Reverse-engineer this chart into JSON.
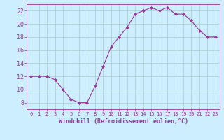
{
  "x": [
    0,
    1,
    2,
    3,
    4,
    5,
    6,
    7,
    8,
    9,
    10,
    11,
    12,
    13,
    14,
    15,
    16,
    17,
    18,
    19,
    20,
    21,
    22,
    23
  ],
  "y": [
    12,
    12,
    12,
    11.5,
    10,
    8.5,
    8,
    8,
    10.5,
    13.5,
    16.5,
    18,
    19.5,
    21.5,
    22,
    22.5,
    22,
    22.5,
    21.5,
    21.5,
    20.5,
    19,
    18,
    18
  ],
  "line_color": "#993399",
  "marker": "D",
  "marker_size": 2,
  "bg_color": "#cceeff",
  "grid_color": "#aacccc",
  "xlabel": "Windchill (Refroidissement éolien,°C)",
  "xlabel_color": "#993399",
  "tick_color": "#993399",
  "ylim": [
    7,
    23
  ],
  "xlim": [
    -0.5,
    23.5
  ],
  "yticks": [
    8,
    10,
    12,
    14,
    16,
    18,
    20,
    22
  ],
  "xticks": [
    0,
    1,
    2,
    3,
    4,
    5,
    6,
    7,
    8,
    9,
    10,
    11,
    12,
    13,
    14,
    15,
    16,
    17,
    18,
    19,
    20,
    21,
    22,
    23
  ]
}
